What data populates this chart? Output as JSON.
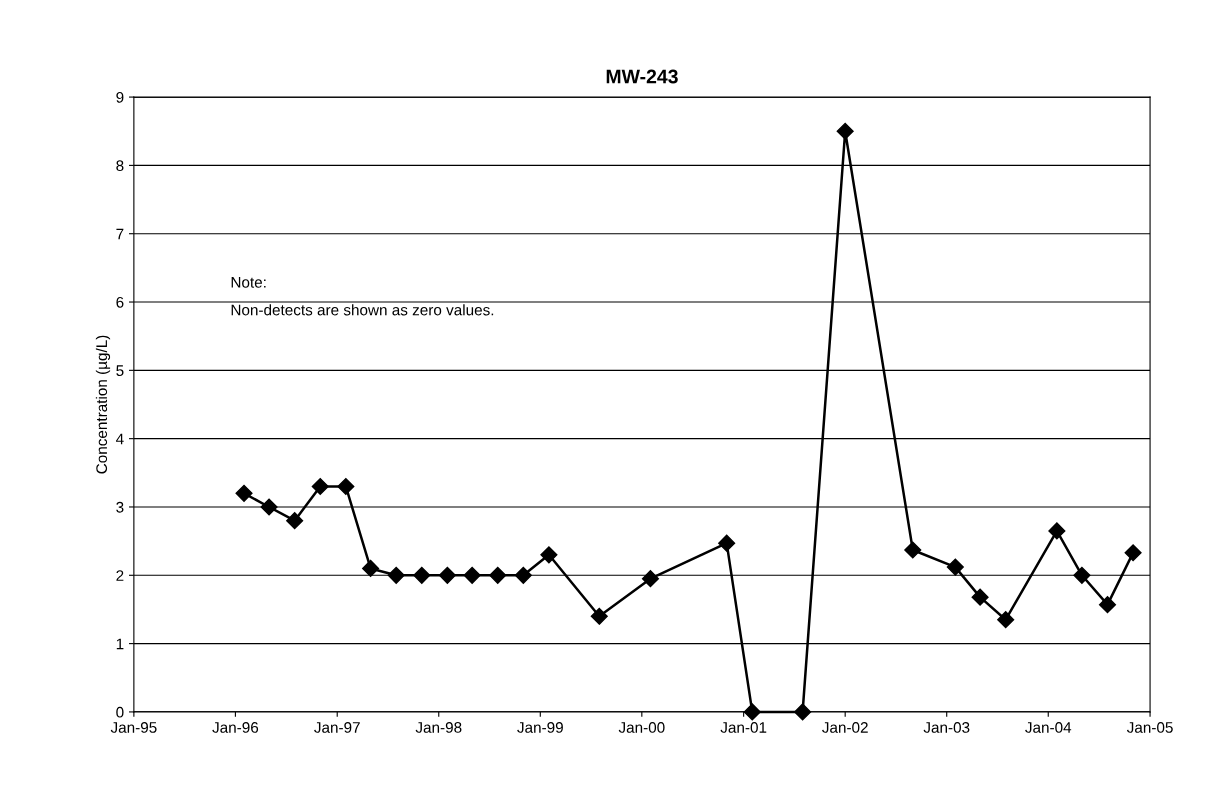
{
  "chart_data": {
    "type": "line",
    "title": "MW-243",
    "ylabel": "Concentration (µg/L)",
    "annotations": [
      "Note:",
      "Non-detects are shown as zero values."
    ],
    "x": [
      "1996-02",
      "1996-05",
      "1996-08",
      "1996-11",
      "1997-02",
      "1997-05",
      "1997-08",
      "1997-11",
      "1998-02",
      "1998-05",
      "1998-08",
      "1998-11",
      "1999-02",
      "1999-08",
      "2000-02",
      "2000-11",
      "2001-02",
      "2001-08",
      "2002-01",
      "2002-09",
      "2003-02",
      "2003-05",
      "2003-08",
      "2004-02",
      "2004-05",
      "2004-08",
      "2004-11"
    ],
    "series": [
      {
        "color": "#000000",
        "values": [
          3.2,
          3.0,
          2.8,
          3.3,
          3.3,
          2.1,
          2.0,
          2.0,
          2.0,
          2.0,
          2.0,
          2.0,
          2.3,
          1.4,
          1.95,
          2.47,
          0,
          0,
          8.5,
          2.37,
          2.12,
          1.68,
          1.35,
          2.65,
          2.0,
          1.57,
          2.33
        ]
      }
    ],
    "xlim": [
      "1995-01",
      "2005-01"
    ],
    "xticks": [
      {
        "value": "1995-01",
        "label": "Jan-95"
      },
      {
        "value": "1996-01",
        "label": "Jan-96"
      },
      {
        "value": "1997-01",
        "label": "Jan-97"
      },
      {
        "value": "1998-01",
        "label": "Jan-98"
      },
      {
        "value": "1999-01",
        "label": "Jan-99"
      },
      {
        "value": "2000-01",
        "label": "Jan-00"
      },
      {
        "value": "2001-01",
        "label": "Jan-01"
      },
      {
        "value": "2002-01",
        "label": "Jan-02"
      },
      {
        "value": "2003-01",
        "label": "Jan-03"
      },
      {
        "value": "2004-01",
        "label": "Jan-04"
      },
      {
        "value": "2005-01",
        "label": "Jan-05"
      }
    ],
    "ylim": [
      0,
      9
    ],
    "yticks": [
      0,
      1,
      2,
      3,
      4,
      5,
      6,
      7,
      8,
      9
    ],
    "grid": "y",
    "marker": "diamond",
    "line_style": "solid"
  }
}
